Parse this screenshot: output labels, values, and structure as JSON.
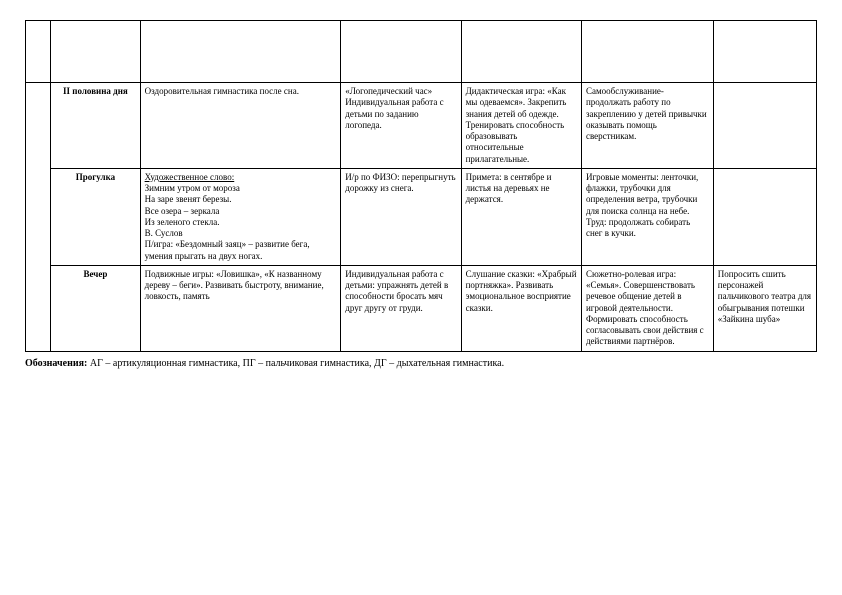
{
  "rows": {
    "r1": {
      "time": "II половина дня",
      "col2": "Оздоровительная гимнастика после сна.",
      "col3": "«Логопедический час»\nИндивидуальная работа с детьми по заданию логопеда.",
      "col4": "Дидактическая игра: «Как мы одеваемся». Закрепить знания детей об одежде. Тренировать способность образовывать относительные прилагательные.",
      "col5": "Самообслуживание- продолжать работу по закреплению у детей привычки оказывать помощь сверстникам.",
      "col6": ""
    },
    "r2": {
      "time": "Прогулка",
      "col2_u": "Художественное слово:",
      "col2_rest": "Зимним утром от мороза\nНа заре звенят березы.\nВсе озера – зеркала\nИз зеленого стекла.\nВ. Суслов\nП/игра: «Бездомный заяц» – развитие бега, умения прыгать на двух ногах.",
      "col3": "И/р по ФИЗО: перепрыгнуть дорожку из снега.",
      "col4": "Примета: в сентябре и листья на деревьях не держатся.",
      "col5": "Игровые моменты: ленточки, флажки, трубочки для определения ветра, трубочки для поиска солнца на небе.\nТруд: продолжать собирать снег в кучки.",
      "col6": ""
    },
    "r3": {
      "time": "Вечер",
      "col2": "Подвижные игры: «Ловишка», «К названному дереву – беги». Развивать быстроту, внимание, ловкость, память",
      "col3": "Индивидуальная работа с детьми: упражнять детей в способности бросать мяч друг другу от груди.",
      "col4": "Слушание сказки: «Храбрый портняжка». Развивать эмоциональное восприятие сказки.",
      "col5": "Сюжетно-ролевая игра: «Семья». Совершенствовать речевое общение детей в игровой деятельности. Формировать способность согласовывать свои действия с действиями партнёров.",
      "col6": "Попросить сшить персонажей пальчикового театра для обыгрывания потешки «Зайкина шуба»"
    }
  },
  "legend": {
    "label": "Обозначения:",
    "text": "АГ – артикуляционная гимнастика, ПГ – пальчиковая гимнастика,  ДГ – дыхательная гимнастика."
  },
  "style": {
    "background": "#ffffff",
    "border_color": "#000000",
    "text_color": "#000000",
    "font_family": "Times New Roman",
    "body_fontsize": 9,
    "legend_fontsize": 10
  }
}
